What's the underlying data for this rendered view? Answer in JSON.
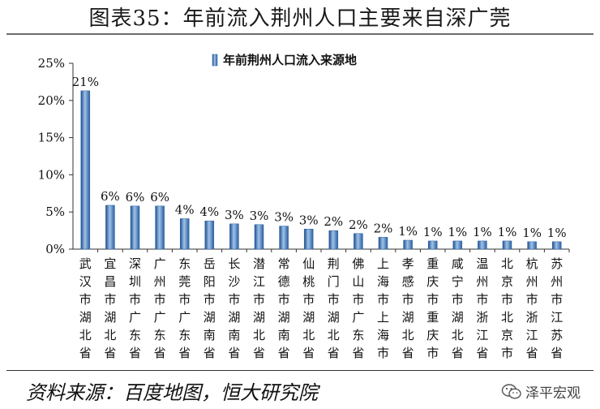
{
  "page": {
    "title": "图表35：年前流入荆州人口主要来自深广莞",
    "source": "资料来源：百度地图，恒大研究院",
    "watermark": "泽平宏观",
    "colors": {
      "bar_light": "#9ec3ea",
      "bar_mid": "#4f81bd",
      "bar_dark": "#1f4e8c",
      "axis": "#333333"
    },
    "icons": {
      "watermark": "wechat-icon"
    }
  },
  "chart_data": {
    "type": "bar",
    "title": "",
    "xlabel": "",
    "ylabel": "",
    "legend": {
      "position": "top-center"
    },
    "grid": false,
    "ylim": [
      0,
      25
    ],
    "yticks": [
      "0%",
      "5%",
      "10%",
      "15%",
      "20%",
      "25%"
    ],
    "categories": [
      "武汉市湖北省",
      "宜昌市湖北省",
      "深圳市广东省",
      "广州市广东省",
      "东莞市广东省",
      "岳阳市湖南省",
      "长沙市湖南省",
      "潜江市湖北省",
      "常德市湖南省",
      "仙桃市湖北省",
      "荆门市湖北省",
      "佛山市广东省",
      "上海市上海市",
      "孝感市湖北省",
      "重庆市重庆市",
      "咸宁市湖北省",
      "温州市浙江省",
      "北京市北京市",
      "杭州市浙江省",
      "苏州市江苏省"
    ],
    "series": [
      {
        "name": "年前荆州人口流入来源地",
        "values": [
          21.3,
          5.9,
          5.8,
          5.8,
          4.1,
          3.8,
          3.4,
          3.3,
          3.1,
          2.7,
          2.5,
          2.1,
          1.6,
          1.2,
          1.1,
          1.1,
          1.1,
          1.1,
          1.0,
          1.0
        ],
        "labels": [
          "21%",
          "6%",
          "6%",
          "6%",
          "4%",
          "4%",
          "3%",
          "3%",
          "3%",
          "3%",
          "2%",
          "2%",
          "2%",
          "1%",
          "1%",
          "1%",
          "1%",
          "1%",
          "1%",
          "1%"
        ]
      }
    ]
  }
}
